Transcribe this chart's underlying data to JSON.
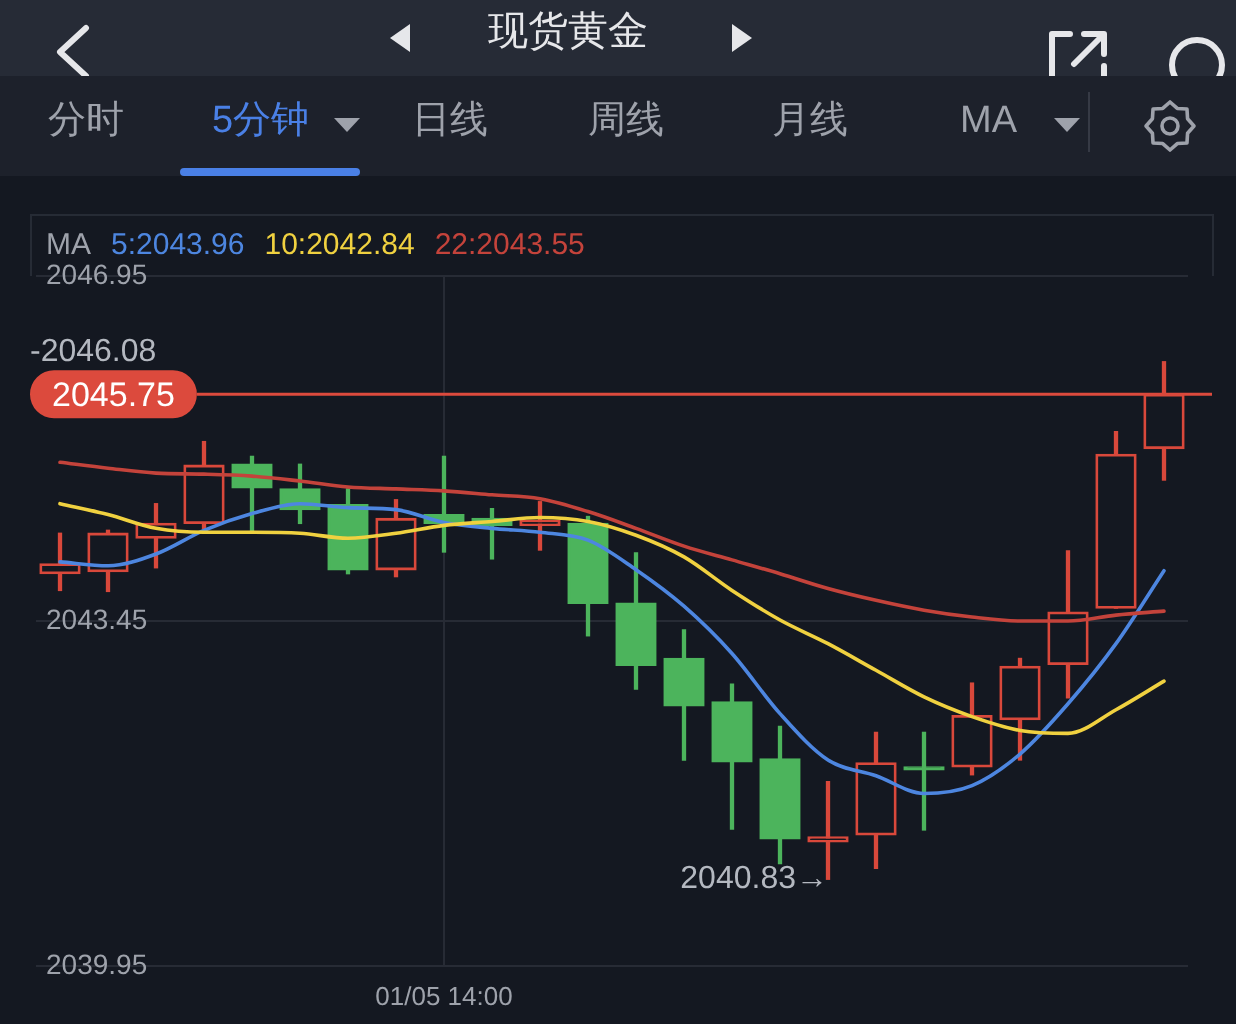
{
  "chart_data": {
    "type": "candlestick",
    "title": "现货黄金",
    "categories": [
      null,
      null,
      null,
      null,
      null,
      null,
      null,
      null,
      "01/05 14:00",
      null,
      null,
      null,
      null,
      null,
      null,
      null,
      null,
      null,
      null,
      null,
      null,
      null,
      null,
      null
    ],
    "ohlc": [
      [
        2043.93,
        2044.34,
        2043.76,
        2044.03
      ],
      [
        2043.95,
        2044.37,
        2043.75,
        2044.34
      ],
      [
        2044.29,
        2044.64,
        2043.99,
        2044.44
      ],
      [
        2044.44,
        2045.27,
        2044.39,
        2045.03
      ],
      [
        2045.04,
        2045.12,
        2044.37,
        2044.8
      ],
      [
        2044.79,
        2045.04,
        2044.44,
        2044.58
      ],
      [
        2044.63,
        2044.79,
        2043.93,
        2043.97
      ],
      [
        2043.97,
        2044.68,
        2043.9,
        2044.49
      ],
      [
        2044.53,
        2045.12,
        2044.15,
        2044.44
      ],
      [
        2044.49,
        2044.59,
        2044.08,
        2044.42
      ],
      [
        2044.42,
        2044.66,
        2044.17,
        2044.47
      ],
      [
        2044.44,
        2044.51,
        2043.3,
        2043.63
      ],
      [
        2043.63,
        2044.14,
        2042.76,
        2043.0
      ],
      [
        2043.07,
        2043.36,
        2042.04,
        2042.59
      ],
      [
        2042.63,
        2042.81,
        2041.34,
        2042.02
      ],
      [
        2042.05,
        2042.38,
        2040.99,
        2041.24
      ],
      [
        2041.21,
        2041.82,
        2040.83,
        2041.26
      ],
      [
        2041.28,
        2042.32,
        2040.94,
        2042.01
      ],
      [
        2041.97,
        2042.32,
        2041.33,
        2041.94
      ],
      [
        2041.97,
        2042.82,
        2041.89,
        2042.49
      ],
      [
        2042.45,
        2043.07,
        2042.04,
        2042.99
      ],
      [
        2043.01,
        2044.16,
        2042.67,
        2043.54
      ],
      [
        2043.58,
        2045.37,
        2043.58,
        2045.14
      ],
      [
        2045.2,
        2046.08,
        2044.88,
        2045.75
      ]
    ],
    "colors": [
      "#d9483b",
      "#d9483b",
      "#d9483b",
      "#d9483b",
      "#4cb45c",
      "#4cb45c",
      "#4cb45c",
      "#d9483b",
      "#4cb45c",
      "#4cb45c",
      "#d9483b",
      "#4cb45c",
      "#4cb45c",
      "#4cb45c",
      "#4cb45c",
      "#4cb45c",
      "#d9483b",
      "#d9483b",
      "#4cb45c",
      "#d9483b",
      "#d9483b",
      "#d9483b",
      "#d9483b",
      "#d9483b"
    ],
    "series": [
      {
        "name": "5:2043.96",
        "type": "line",
        "color": "#4d86e0",
        "values": [
          2044.05,
          2044.01,
          2044.13,
          2044.37,
          2044.54,
          2044.64,
          2044.6,
          2044.58,
          2044.45,
          2044.39,
          2044.35,
          2044.27,
          2043.97,
          2043.6,
          2043.12,
          2042.51,
          2042.04,
          2041.88,
          2041.7,
          2041.78,
          2042.1,
          2042.61,
          2043.22,
          2043.96
        ]
      },
      {
        "name": "10:2042.84",
        "type": "line",
        "color": "#f0d140",
        "values": [
          2044.64,
          2044.53,
          2044.39,
          2044.35,
          2044.35,
          2044.34,
          2044.29,
          2044.34,
          2044.42,
          2044.46,
          2044.5,
          2044.46,
          2044.32,
          2044.1,
          2043.76,
          2043.46,
          2043.22,
          2042.95,
          2042.68,
          2042.48,
          2042.34,
          2042.31,
          2042.55,
          2042.84
        ]
      },
      {
        "name": "22:2043.55",
        "type": "line",
        "color": "#c4433b",
        "values": [
          2045.06,
          2045.0,
          2044.95,
          2044.94,
          2044.92,
          2044.87,
          2044.81,
          2044.79,
          2044.77,
          2044.73,
          2044.69,
          2044.56,
          2044.39,
          2044.21,
          2044.07,
          2043.93,
          2043.78,
          2043.66,
          2043.56,
          2043.49,
          2043.45,
          2043.45,
          2043.51,
          2043.55
        ]
      }
    ],
    "legend_title": "MA",
    "legend": "top left",
    "marker": "none",
    "line_style": "solid",
    "ylim": [
      2039.95,
      2046.95
    ],
    "yticks": [
      2046.95,
      2043.45,
      2039.95
    ],
    "grid": true,
    "ref_lines": [
      {
        "axis": "y",
        "value": 2045.75,
        "label": "2045.75",
        "color": "#dc4a3d"
      }
    ],
    "annotations": [
      "分时",
      "5分钟",
      "日线",
      "周线",
      "月线",
      "MA",
      "-2046.08",
      "2040.83→"
    ]
  }
}
